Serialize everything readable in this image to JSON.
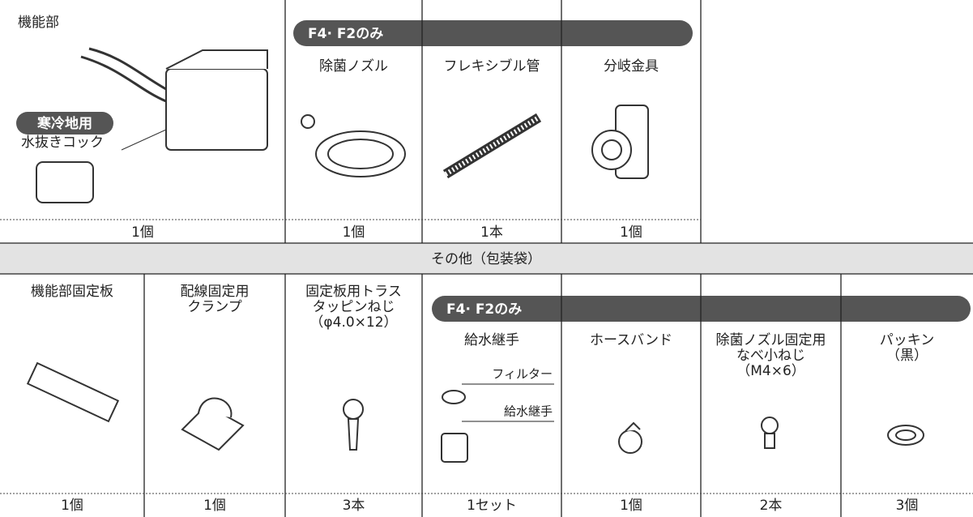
{
  "top_banner": "F4· F2のみ",
  "top_parts": [
    {
      "label": [
        "機能部"
      ],
      "qty": "1個",
      "callout": {
        "badge": "寒冷地用",
        "label": "水抜きコック"
      }
    },
    {
      "label": [
        "除菌ノズル"
      ],
      "qty": "1個"
    },
    {
      "label": [
        "フレキシブル管"
      ],
      "qty": "1本"
    },
    {
      "label": [
        "分岐金具"
      ],
      "qty": "1個"
    }
  ],
  "section_title": "その他（包装袋）",
  "bottom_banner": "F4· F2のみ",
  "bottom_parts": [
    {
      "label": [
        "機能部固定板"
      ],
      "qty": "1個"
    },
    {
      "label": [
        "配線固定用",
        "クランプ"
      ],
      "qty": "1個"
    },
    {
      "label": [
        "固定板用トラス",
        "タッピンねじ",
        "（φ4.0×12）"
      ],
      "qty": "3本"
    },
    {
      "label": [
        "給水継手"
      ],
      "qty": "1セット",
      "sub_labels": [
        "フィルター",
        "給水継手"
      ]
    },
    {
      "label": [
        "ホースバンド"
      ],
      "qty": "1個"
    },
    {
      "label": [
        "除菌ノズル固定用",
        "なべ小ねじ",
        "（M4×6）"
      ],
      "qty": "2本"
    },
    {
      "label": [
        "パッキン",
        "（黒）"
      ],
      "qty": "3個"
    }
  ]
}
